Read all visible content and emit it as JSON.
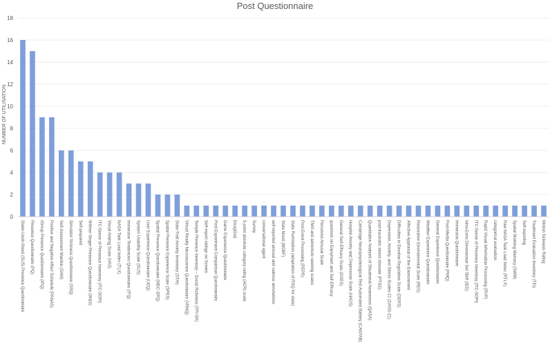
{
  "chart_data": {
    "type": "bar",
    "title": "Post Questionnaire",
    "xlabel": "",
    "ylabel": "NUMBER OF UTILISATION",
    "ylim": [
      0,
      18
    ],
    "yticks": [
      0,
      2,
      4,
      6,
      8,
      10,
      12,
      14,
      16,
      18
    ],
    "grid": true,
    "legend": "none",
    "bar_color": "#7f9fdb",
    "categories": [
      "Slater-Usoh-Steed (SUS) Presence Questionnaire",
      "Presence Questionnaire (PQ)",
      "iGroup Presence Questionnaire (IPQ)",
      "Positive and Negative Affect Schedule (PANAS)",
      "Self-Assessment Manikin (SAM)",
      "Simulator Sickness Questionnaire (SSQ)",
      "Self-prepared",
      "Witmer-Singer Presence Questionnaire (W&S)",
      "ITC-Sense of Presence Inventory (ITC-SOPI)",
      "Visual Analog Scale (VAS)",
      "NASA Task Load Index (TLX)",
      "Immersive Tendencies Questionnaire (ITQ)",
      "System Usability Scale (SUS)",
      "User Experience Questionnaire (UEQ)",
      "Spatial Presence Questionnaire (MEC-SPQ)",
      "Spatial Presence Experience Scale (SPES)",
      "State-Trait Anxiety Inventory (STAI)",
      "Virtual Reality Neuroscience Questionnaire (VRNQ)",
      "Temple Presence Inventory – Social Richness (TPI-SR)",
      "Self-report ratings on Screen",
      "Post-Experiment Comparison Questionnaire",
      "Game Experience Questionnaire",
      "EmojiGrid",
      "5-point absolute category rating (ACR) scale",
      "Survey",
      "conversational agent",
      "self-reported arousal and valence annotations",
      "State Mood (MDBF)",
      "State Rumination (adaptation of RSQ for state)",
      "Post-Event Processing (PEPR)",
      "Thrill and adventure seeking scales",
      "Perceived Arousal Scale",
      "questions on Enjoyment and Self-Efficacy",
      "General Self-Efficacy Scale (GSES)",
      "Hospital Anxiety and Depression Scale (HADS)",
      "Cambridge Neuropsychological Test Automated Battery (CANTAB)",
      "Quantitative Analysis of Situational Awareness (QASA)",
      "post-traumatic stress disorder (PTSD)",
      "Depression, Anxiety, and Stress Scales-21 (DASS-21)",
      "Difficulties in Emotion Regulation Scale (DERS)",
      "Affective Appraisal of the Environment",
      "Restorative Environmental Scale (RES)",
      "Weather Experience Questionnaire",
      "General Experience Questionnaire",
      "Post-Media Questionnaire (PMQ)",
      "Immersion Questionnaire",
      "Intra-Extra Dimensional Set Shift (IED)",
      "ITC-Sense of Presence Inventory (ITC-SOPI)",
      "Rapid Visual Information Processing (RVP)",
      "categorical evaluation",
      "Raw NASA Task Load Index (RTLX)",
      "Spatial Working Memory (SWM)",
      "Self-reporting",
      "Treatment Evaluation Inventory (TEI)",
      "Motion Sickness Rating"
    ],
    "values": [
      16,
      15,
      9,
      9,
      6,
      6,
      5,
      5,
      4,
      4,
      4,
      3,
      3,
      3,
      2,
      2,
      2,
      1,
      1,
      1,
      1,
      1,
      1,
      1,
      1,
      1,
      1,
      1,
      1,
      1,
      1,
      1,
      1,
      1,
      1,
      1,
      1,
      1,
      1,
      1,
      1,
      1,
      1,
      1,
      1,
      1,
      1,
      1,
      1,
      1,
      1,
      1,
      1,
      1,
      1
    ]
  }
}
